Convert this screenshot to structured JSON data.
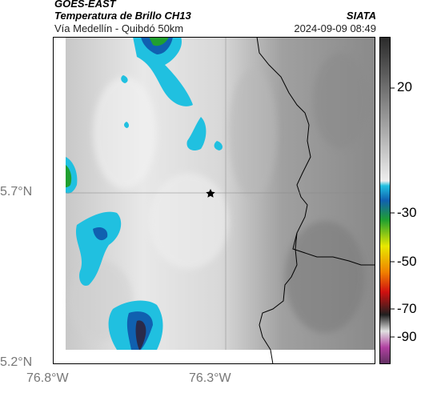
{
  "header": {
    "satellite": "GOES-EAST",
    "product": "Temperatura de Brillo CH13",
    "region": "Vía Medellín - Quibdó 50km",
    "agency": "SIATA",
    "datetime": "2024-09-09 08:49"
  },
  "map": {
    "lat_ticks": [
      "5.7°N",
      "5.2°N"
    ],
    "lon_ticks": [
      "76.8°W",
      "76.3°W"
    ],
    "marker": "star-icon",
    "gridlines": true,
    "features": [
      "department-boundary-lines",
      "cold-cloud-tops-top-left",
      "cold-cloud-tops-bottom-left"
    ]
  },
  "colorbar": {
    "tick_labels": [
      "20",
      "-30",
      "-50",
      "-70",
      "-90"
    ],
    "unit_hint": "",
    "colors": {
      "warm_top": "#2a2a2a",
      "cyan": "#20c0e0",
      "blue": "#1060b0",
      "green": "#20a030",
      "yellow": "#e8e800",
      "orange": "#f08000",
      "red": "#d01010",
      "dark": "#202020",
      "magenta": "#b040a0"
    }
  }
}
